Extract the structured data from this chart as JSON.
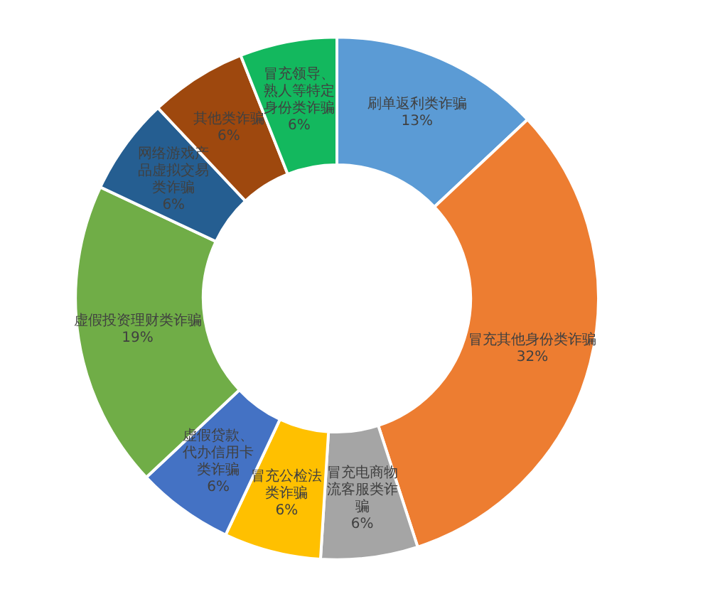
{
  "chart_data": {
    "type": "donut",
    "categories": [
      "刷单返利类诈骗",
      "冒充其他身份类诈骗",
      "冒充电商物流客服类诈骗",
      "冒充公检法类诈骗",
      "虚假贷款、代办信用卡类诈骗",
      "虚假投资理财类诈骗",
      "网络游戏产品虚拟交易类诈骗",
      "其他类诈骗",
      "冒充领导、熟人等特定身份类诈骗"
    ],
    "values": [
      13,
      32,
      6,
      6,
      6,
      19,
      6,
      6,
      6
    ],
    "colors": [
      "#5b9bd5",
      "#ed7d31",
      "#a5a5a5",
      "#ffc000",
      "#4472c4",
      "#70ad47",
      "#255e91",
      "#9e480e",
      "#13b85e"
    ],
    "value_labels": [
      "13%",
      "32%",
      "6%",
      "6%",
      "6%",
      "19%",
      "6%",
      "6%",
      "6%"
    ],
    "legend": false
  }
}
